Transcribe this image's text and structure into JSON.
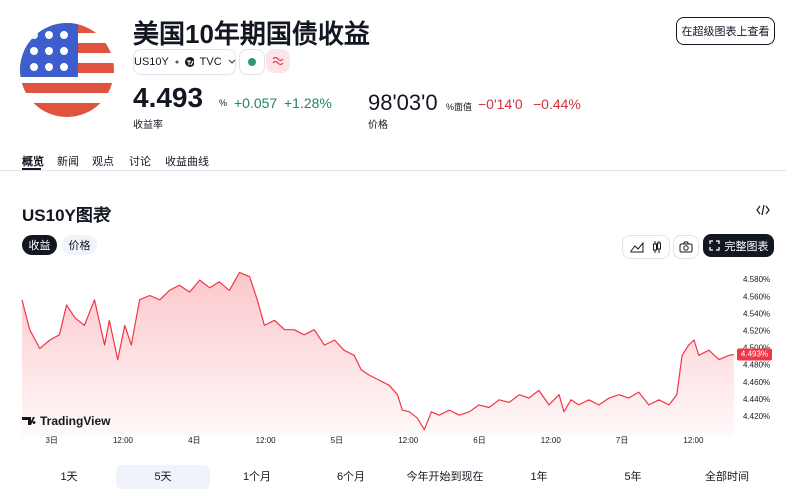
{
  "header": {
    "title": "美国10年期国债收益",
    "symbol": "US10Y",
    "exchange": "TVC",
    "button": "在超级图表上查看"
  },
  "yield": {
    "value": "4.493",
    "unit": "%",
    "change": "+0.057",
    "change_percent": "+1.28%",
    "label": "收益率"
  },
  "price": {
    "value": "98'03'0",
    "unit": "%面值",
    "change": "−0'14'0",
    "change_percent": "−0.44%",
    "label": "价格"
  },
  "tabs": [
    "概览",
    "新闻",
    "观点",
    "讨论",
    "收益曲线"
  ],
  "chart_section": {
    "title": "US10Y图表",
    "toggles": [
      "收益",
      "价格"
    ],
    "full_chart_button": "完整图表",
    "ranges": [
      "1天",
      "5天",
      "1个月",
      "6个月",
      "今年开始到现在",
      "1年",
      "5年",
      "全部时间"
    ]
  },
  "chart_data": {
    "type": "line",
    "color": "#f23645",
    "grid": false,
    "watermark": "TradingView",
    "x": [
      -5.0,
      -3.7,
      -2.0,
      -0.3,
      1.3,
      2.5,
      3.9,
      5.5,
      7.2,
      8.9,
      9.7,
      11.1,
      12.3,
      13.4,
      14.8,
      16.5,
      18.2,
      19.8,
      21.5,
      23.2,
      24.9,
      26.6,
      28.2,
      29.9,
      31.6,
      33.3,
      34.6,
      35.8,
      37.5,
      39.2,
      40.8,
      42.5,
      44.2,
      45.9,
      47.6,
      49.2,
      50.9,
      52.1,
      53.4,
      55.1,
      56.8,
      58.2,
      59.0,
      60.2,
      61.5,
      62.7,
      63.9,
      65.2,
      66.9,
      68.6,
      70.3,
      71.9,
      73.6,
      75.3,
      77.0,
      78.7,
      80.3,
      82.0,
      83.7,
      85.4,
      86.2,
      87.4,
      88.7,
      90.4,
      92.1,
      93.8,
      95.5,
      97.1,
      98.8,
      100.5,
      102.2,
      103.9,
      105.2,
      106.1,
      107.2,
      108.1,
      108.9,
      110.6,
      112.3,
      114.0,
      114.8
    ],
    "values": [
      4.557,
      4.522,
      4.5,
      4.51,
      4.516,
      4.551,
      4.536,
      4.527,
      4.557,
      4.504,
      4.533,
      4.487,
      4.527,
      4.504,
      4.557,
      4.562,
      4.557,
      4.568,
      4.574,
      4.566,
      4.58,
      4.571,
      4.578,
      4.568,
      4.589,
      4.584,
      4.557,
      4.527,
      4.533,
      4.522,
      4.522,
      4.516,
      4.522,
      4.504,
      4.51,
      4.498,
      4.492,
      4.475,
      4.469,
      4.463,
      4.457,
      4.446,
      4.428,
      4.426,
      4.419,
      4.405,
      4.426,
      4.422,
      4.428,
      4.422,
      4.426,
      4.434,
      4.431,
      4.44,
      4.437,
      4.446,
      4.442,
      4.451,
      4.434,
      4.446,
      4.426,
      4.44,
      4.434,
      4.44,
      4.434,
      4.442,
      4.446,
      4.442,
      4.449,
      4.434,
      4.44,
      4.434,
      4.446,
      4.492,
      4.504,
      4.51,
      4.492,
      4.498,
      4.487,
      4.492,
      4.493
    ],
    "current_value": {
      "value": 4.493,
      "label": "4.493%"
    },
    "xlim": [
      -5,
      115
    ],
    "ylim": [
      4.4,
      4.6
    ],
    "xticks": [
      {
        "value": 0,
        "label": "3日"
      },
      {
        "value": 12,
        "label": "12:00"
      },
      {
        "value": 24,
        "label": "4日"
      },
      {
        "value": 36,
        "label": "12:00"
      },
      {
        "value": 48,
        "label": "5日"
      },
      {
        "value": 60,
        "label": "12:00"
      },
      {
        "value": 72,
        "label": "6日"
      },
      {
        "value": 84,
        "label": "12:00"
      },
      {
        "value": 96,
        "label": "7日"
      },
      {
        "value": 108,
        "label": "12:00"
      }
    ],
    "yticks": [
      {
        "value": 4.42,
        "label": "4.420%"
      },
      {
        "value": 4.44,
        "label": "4.440%"
      },
      {
        "value": 4.46,
        "label": "4.460%"
      },
      {
        "value": 4.48,
        "label": "4.480%"
      },
      {
        "value": 4.5,
        "label": "4.500%"
      },
      {
        "value": 4.52,
        "label": "4.520%"
      },
      {
        "value": 4.54,
        "label": "4.540%"
      },
      {
        "value": 4.56,
        "label": "4.560%"
      },
      {
        "value": 4.58,
        "label": "4.580%"
      }
    ]
  }
}
